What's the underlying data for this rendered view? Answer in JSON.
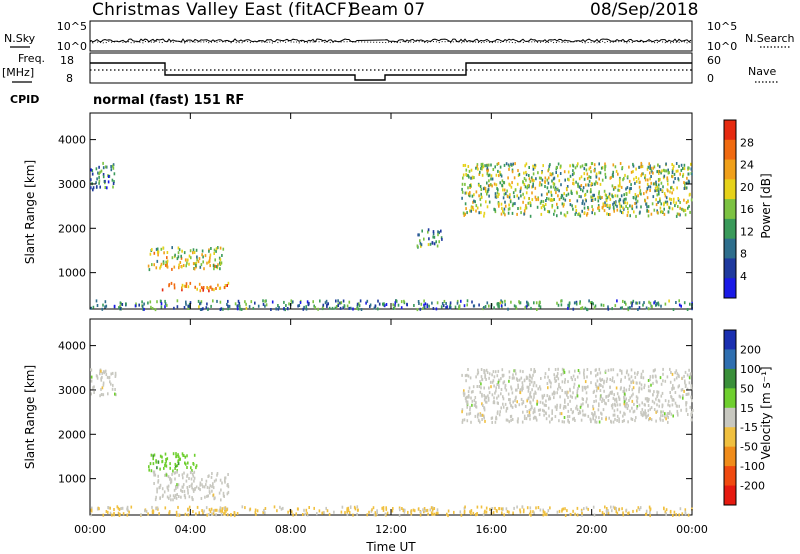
{
  "header": {
    "station": "Christmas Valley East (fitACF)",
    "beam": "Beam 07",
    "date": "08/Sep/2018"
  },
  "sidebar": {
    "nsky_label": "N.Sky",
    "nsearch_label": "N.Search",
    "freq_label": "Freq.",
    "freq_unit": "[MHz]",
    "cpid_label": "CPID",
    "nave_label": "Nave",
    "mode_text": "normal (fast) 151 RF"
  },
  "noise_axis": {
    "left_ticks": [
      "10^5",
      "10^0"
    ],
    "right_ticks": [
      "10^5",
      "10^0"
    ]
  },
  "freq_axis": {
    "left_ticks": [
      "18",
      "8"
    ],
    "right_ticks": [
      "60",
      "0"
    ]
  },
  "colors": {
    "power_scale": [
      "#1a1ae6",
      "#1f3a9e",
      "#2e6e8c",
      "#3a9a5a",
      "#7cc242",
      "#e6d21a",
      "#f0a01a",
      "#f06a10",
      "#e62a10"
    ],
    "velocity_scale": [
      "#1a2fb0",
      "#2f6fb0",
      "#3a8f3a",
      "#6fcf2f",
      "#c8c8c0",
      "#f0c040",
      "#f08c1a",
      "#f04a10",
      "#e61a10"
    ]
  },
  "chart_data": [
    {
      "type": "heatmap",
      "name": "power",
      "xlabel": "",
      "ylabel": "Slant Range [km]",
      "xlim": [
        "00:00",
        "24:00"
      ],
      "ylim": [
        180,
        4600
      ],
      "yticks": [
        "1000",
        "2000",
        "3000",
        "4000"
      ],
      "colorbar_label": "Power [dB]",
      "colorbar_ticks": [
        "4",
        "8",
        "12",
        "16",
        "20",
        "24",
        "28"
      ],
      "echo_regions": [
        {
          "t_start_h": 0.0,
          "t_end_h": 1.0,
          "range_km": [
            2900,
            3500
          ],
          "value": 10
        },
        {
          "t_start_h": 2.3,
          "t_end_h": 5.3,
          "range_km": [
            1100,
            1600
          ],
          "value": 18
        },
        {
          "t_start_h": 2.8,
          "t_end_h": 5.5,
          "range_km": [
            620,
            800
          ],
          "value": 26
        },
        {
          "t_start_h": 13.0,
          "t_end_h": 14.0,
          "range_km": [
            1600,
            2000
          ],
          "value": 12
        },
        {
          "t_start_h": 14.8,
          "t_end_h": 24.0,
          "range_km": [
            2300,
            3500
          ],
          "value": 16
        },
        {
          "t_start_h": 0.0,
          "t_end_h": 24.0,
          "range_km": [
            200,
            400
          ],
          "value": 10
        }
      ]
    },
    {
      "type": "heatmap",
      "name": "velocity",
      "xlabel": "Time UT",
      "ylabel": "Slant Range [km]",
      "xlim": [
        "00:00",
        "24:00"
      ],
      "xticks": [
        "00:00",
        "04:00",
        "08:00",
        "12:00",
        "16:00",
        "20:00",
        "00:00"
      ],
      "ylim": [
        180,
        4600
      ],
      "yticks": [
        "1000",
        "2000",
        "3000",
        "4000"
      ],
      "colorbar_label": "Velocity [m s⁻¹]",
      "colorbar_ticks": [
        "200",
        "100",
        "50",
        "15",
        "-15",
        "-50",
        "-100",
        "-200"
      ],
      "echo_regions": [
        {
          "t_start_h": 0.0,
          "t_end_h": 1.0,
          "range_km": [
            2900,
            3500
          ],
          "value": 0
        },
        {
          "t_start_h": 2.3,
          "t_end_h": 4.3,
          "range_km": [
            1200,
            1600
          ],
          "value": 60
        },
        {
          "t_start_h": 2.5,
          "t_end_h": 5.5,
          "range_km": [
            550,
            1200
          ],
          "value": 0
        },
        {
          "t_start_h": 14.8,
          "t_end_h": 24.0,
          "range_km": [
            2300,
            3500
          ],
          "value": 0
        },
        {
          "t_start_h": 0.0,
          "t_end_h": 24.0,
          "range_km": [
            200,
            400
          ],
          "value": -40
        }
      ]
    }
  ]
}
